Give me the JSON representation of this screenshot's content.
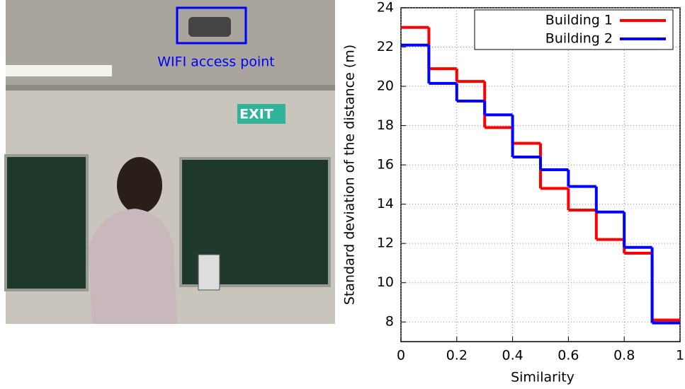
{
  "photo": {
    "annotation": "WIFI access point",
    "exit_sign": "EXIT"
  },
  "chart_data": {
    "type": "step",
    "xlabel": "Similarity",
    "ylabel": "Standard deviation of the distance (m)",
    "x": [
      0,
      0.1,
      0.2,
      0.3,
      0.4,
      0.5,
      0.6,
      0.7,
      0.8,
      0.9
    ],
    "series": [
      {
        "name": "Building 1",
        "color": "#ff0000",
        "values": [
          23.0,
          20.9,
          20.25,
          17.9,
          17.1,
          14.8,
          13.7,
          12.2,
          11.5,
          8.1
        ]
      },
      {
        "name": "Building 2",
        "color": "#0000ff",
        "values": [
          22.1,
          20.15,
          19.25,
          18.55,
          16.4,
          15.75,
          14.9,
          13.6,
          11.8,
          7.95
        ]
      }
    ],
    "xlim": [
      0,
      1
    ],
    "xticks": [
      0,
      0.2,
      0.4,
      0.6,
      0.8,
      1
    ],
    "ylim": [
      7,
      24
    ],
    "yticks": [
      8,
      10,
      12,
      14,
      16,
      18,
      20,
      22,
      24
    ],
    "grid": true,
    "legend": "top-right"
  }
}
